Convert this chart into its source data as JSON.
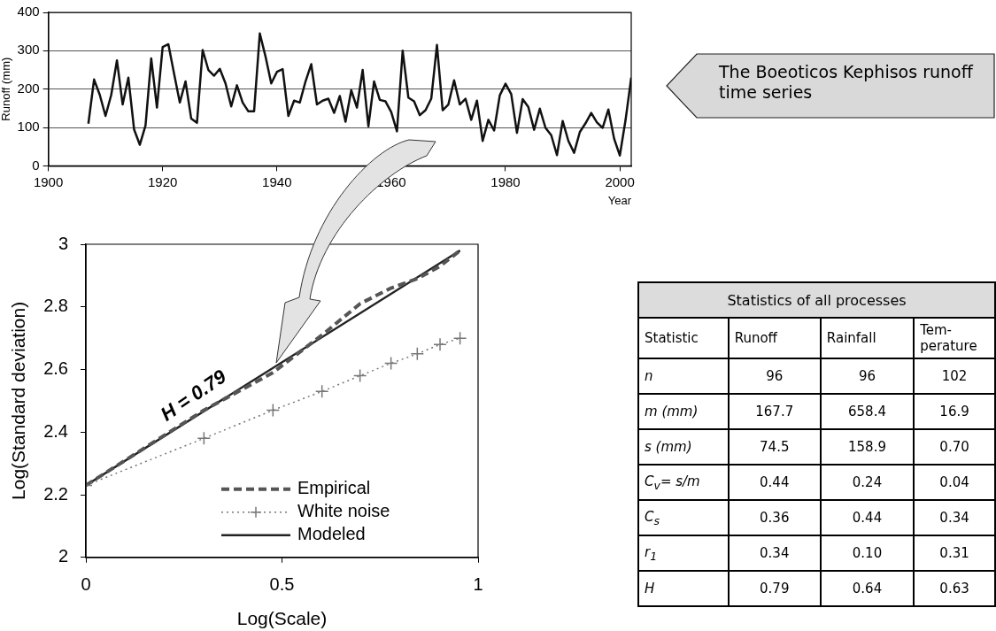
{
  "chart_data": [
    {
      "type": "line",
      "ylabel": "Runoff (mm)",
      "xlabel": "Year",
      "xlim": [
        1900,
        2002
      ],
      "xticks": [
        1900,
        1920,
        1940,
        1960,
        1980,
        2000
      ],
      "ylim": [
        0,
        400
      ],
      "yticks": [
        0,
        100,
        200,
        300,
        400
      ],
      "grid": "y",
      "marker": "none",
      "x": [
        1907,
        1908,
        1909,
        1910,
        1911,
        1912,
        1913,
        1914,
        1915,
        1916,
        1917,
        1918,
        1919,
        1920,
        1921,
        1922,
        1923,
        1924,
        1925,
        1926,
        1927,
        1928,
        1929,
        1930,
        1931,
        1932,
        1933,
        1934,
        1935,
        1936,
        1937,
        1938,
        1939,
        1940,
        1941,
        1942,
        1943,
        1944,
        1945,
        1946,
        1947,
        1948,
        1949,
        1950,
        1951,
        1952,
        1953,
        1954,
        1955,
        1956,
        1957,
        1958,
        1959,
        1960,
        1961,
        1962,
        1963,
        1964,
        1965,
        1966,
        1967,
        1968,
        1969,
        1970,
        1971,
        1972,
        1973,
        1974,
        1975,
        1976,
        1977,
        1978,
        1979,
        1980,
        1981,
        1982,
        1983,
        1984,
        1985,
        1986,
        1987,
        1988,
        1989,
        1990,
        1991,
        1992,
        1993,
        1994,
        1995,
        1996,
        1997,
        1998,
        1999,
        2000,
        2001,
        2002
      ],
      "series": [
        {
          "color": "#111111",
          "values": [
            110,
            225,
            185,
            130,
            185,
            275,
            160,
            230,
            95,
            55,
            105,
            280,
            152,
            310,
            317,
            240,
            165,
            220,
            123,
            112,
            302,
            250,
            235,
            253,
            215,
            155,
            210,
            165,
            142,
            142,
            345,
            285,
            215,
            245,
            252,
            130,
            170,
            165,
            220,
            265,
            160,
            170,
            175,
            138,
            182,
            115,
            197,
            152,
            250,
            103,
            220,
            172,
            168,
            140,
            90,
            300,
            178,
            168,
            132,
            145,
            175,
            315,
            145,
            160,
            223,
            160,
            175,
            120,
            170,
            65,
            120,
            92,
            184,
            214,
            187,
            86,
            174,
            153,
            94,
            149,
            99,
            80,
            28,
            117,
            65,
            34,
            88,
            111,
            138,
            113,
            99,
            147,
            71,
            27,
            119,
            230
          ]
        }
      ],
      "annotations": [
        "The Boeoticos Kephisos runoff time series"
      ]
    },
    {
      "type": "line",
      "xlabel": "Log(Scale)",
      "ylabel": "Log(Standard deviation)",
      "xlim": [
        0,
        1
      ],
      "xticks": [
        0,
        0.5,
        1
      ],
      "ylim": [
        2,
        3
      ],
      "yticks": [
        2,
        2.2,
        2.4,
        2.6,
        2.8,
        3
      ],
      "legend": "bottom right",
      "series": [
        {
          "name": "Empirical",
          "color": "#555555",
          "line_style": "dashed",
          "marker": "none",
          "x": [
            0,
            0.301,
            0.477,
            0.602,
            0.699,
            0.778,
            0.845,
            0.903,
            0.954
          ],
          "values": [
            2.23,
            2.47,
            2.59,
            2.71,
            2.81,
            2.86,
            2.89,
            2.93,
            2.98
          ]
        },
        {
          "name": "White noise",
          "color": "#777777",
          "line_style": "dotted",
          "marker": "cross",
          "x": [
            0,
            0.301,
            0.477,
            0.602,
            0.699,
            0.778,
            0.845,
            0.903,
            0.954
          ],
          "values": [
            2.23,
            2.38,
            2.47,
            2.53,
            2.58,
            2.62,
            2.65,
            2.68,
            2.7
          ]
        },
        {
          "name": "Modeled",
          "color": "#222222",
          "line_style": "solid",
          "marker": "none",
          "x": [
            0,
            0.954
          ],
          "values": [
            2.23,
            2.98
          ]
        }
      ],
      "annotations": [
        {
          "text": "H = 0.79",
          "x": 0.3,
          "y": 2.47
        }
      ]
    },
    {
      "type": "other",
      "title": "Statistics of all processes",
      "categories": [
        "Statistic",
        "Runoff",
        "Rainfall",
        "Tem-perature"
      ],
      "annotations": [
        "n",
        "96",
        "96",
        "102",
        "m (mm)",
        "167.7",
        "658.4",
        "16.9",
        "s (mm)",
        "74.5",
        "158.9",
        "0.70",
        "C$_{v}$= s/m",
        "0.44",
        "0.24",
        "0.04",
        "C$_{s}$",
        "0.36",
        "0.44",
        "0.34",
        "r$_{1}$",
        "0.34",
        "0.10",
        "0.31",
        "H",
        "0.79",
        "0.64",
        "0.63"
      ]
    }
  ]
}
